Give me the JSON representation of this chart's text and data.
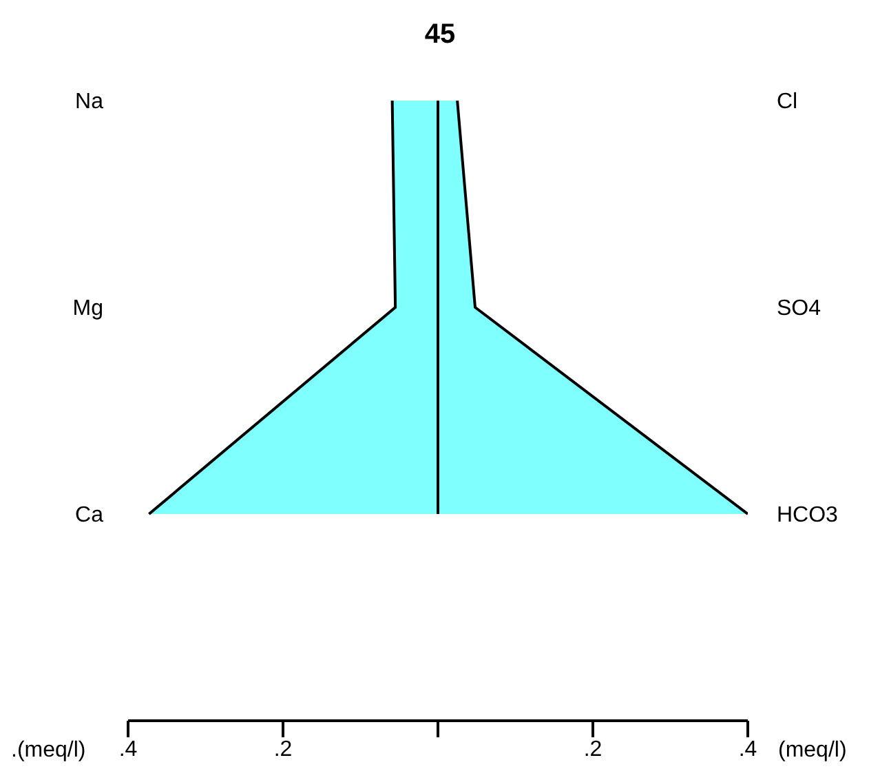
{
  "chart_data": {
    "type": "area",
    "orientation": "horizontal",
    "title": "45",
    "xlabel": "(meq/l)",
    "annotations": [
      ".(meq/l)"
    ],
    "categories": [
      "Na",
      "Mg",
      "Ca"
    ],
    "y2_categories": [
      "Cl",
      "SO4",
      "HCO3"
    ],
    "series": [
      {
        "color": "#80ffff",
        "values": [
          -0.059,
          -0.055,
          -0.373
        ]
      },
      {
        "color": "#80ffff",
        "values": [
          0.025,
          0.048,
          0.4
        ]
      }
    ],
    "xlim": [
      -0.4,
      0.4
    ],
    "xticks": [
      {
        "value": -0.4,
        "label": ".4"
      },
      {
        "value": -0.2,
        "label": ".2"
      },
      {
        "value": 0,
        "label": null
      },
      {
        "value": 0.2,
        "label": ".2"
      },
      {
        "value": 0.4,
        "label": ".4"
      }
    ],
    "ref_lines": [
      {
        "axis": "x",
        "value": 0,
        "color": "#000000"
      }
    ],
    "grid": false,
    "legend": false
  }
}
